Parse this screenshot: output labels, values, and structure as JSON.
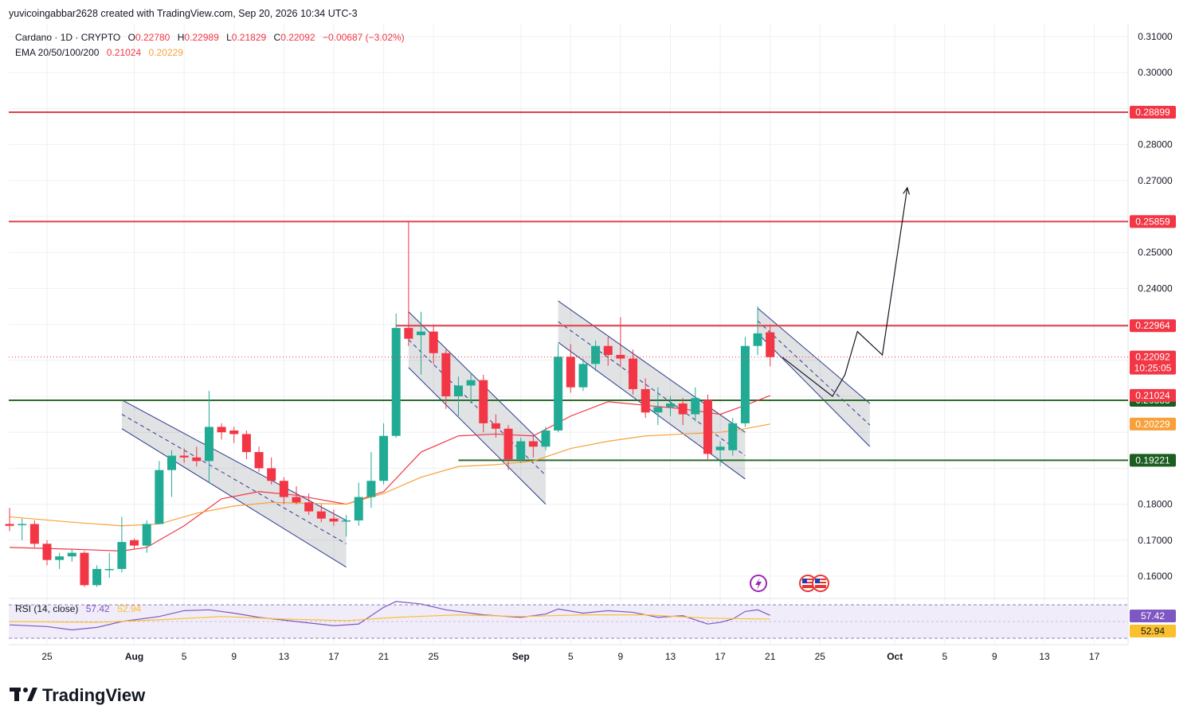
{
  "header": {
    "author_line": "yuvicoingabbar2628 created with TradingView.com, Sep 20, 2026 10:34 UTC-3"
  },
  "legend": {
    "symbol": "Cardano · 1D · CRYPTO",
    "o_label": "O",
    "o_value": "0.22780",
    "h_label": "H",
    "h_value": "0.22989",
    "l_label": "L",
    "l_value": "0.21829",
    "c_label": "C",
    "c_value": "0.22092",
    "change": "−0.00687 (−3.02%)",
    "ema_label": "EMA 20/50/100/200",
    "ema_value_1": "0.21024",
    "ema_value_2": "0.20229"
  },
  "rsi_legend": {
    "label": "RSI (14, close)",
    "value_1": "57.42",
    "value_2": "52.94"
  },
  "footer": {
    "logo_text": "TradingView"
  },
  "colors": {
    "up": "#22ab94",
    "down": "#f23645",
    "resistance": "#e0404a",
    "support": "#2e6b2e",
    "ema_fast": "#f23645",
    "ema_slow": "#f7a13a",
    "channel": "#2a3a8c",
    "rsi_line": "#7e57c2",
    "rsi_ma": "#fbc02d"
  },
  "chart_data": {
    "type": "candlestick",
    "symbol": "Cardano",
    "timeframe": "1D",
    "y_axis": {
      "range": [
        0.156,
        0.316
      ],
      "ticks": [
        "0.31000",
        "0.30000",
        "0.28000",
        "0.27000",
        "0.25000",
        "0.24000",
        "0.18000",
        "0.17000",
        "0.16000"
      ]
    },
    "x_axis": {
      "ticks": [
        {
          "day": 0,
          "label": "25",
          "bold": false
        },
        {
          "day": 7,
          "label": "Aug",
          "bold": true
        },
        {
          "day": 11,
          "label": "5",
          "bold": false
        },
        {
          "day": 15,
          "label": "9",
          "bold": false
        },
        {
          "day": 19,
          "label": "13",
          "bold": false
        },
        {
          "day": 23,
          "label": "17",
          "bold": false
        },
        {
          "day": 27,
          "label": "21",
          "bold": false
        },
        {
          "day": 31,
          "label": "25",
          "bold": false
        },
        {
          "day": 38,
          "label": "Sep",
          "bold": true
        },
        {
          "day": 42,
          "label": "5",
          "bold": false
        },
        {
          "day": 46,
          "label": "9",
          "bold": false
        },
        {
          "day": 50,
          "label": "13",
          "bold": false
        },
        {
          "day": 54,
          "label": "17",
          "bold": false
        },
        {
          "day": 58,
          "label": "21",
          "bold": false
        },
        {
          "day": 62,
          "label": "25",
          "bold": false
        },
        {
          "day": 68,
          "label": "Oct",
          "bold": true
        },
        {
          "day": 72,
          "label": "5",
          "bold": false
        },
        {
          "day": 76,
          "label": "9",
          "bold": false
        },
        {
          "day": 80,
          "label": "13",
          "bold": false
        },
        {
          "day": 84,
          "label": "17",
          "bold": false
        }
      ]
    },
    "candles": [
      {
        "day": -3,
        "o": 0.1745,
        "h": 0.179,
        "l": 0.1725,
        "c": 0.174
      },
      {
        "day": -2,
        "o": 0.1742,
        "h": 0.176,
        "l": 0.17,
        "c": 0.1745
      },
      {
        "day": -1,
        "o": 0.1745,
        "h": 0.1755,
        "l": 0.168,
        "c": 0.169
      },
      {
        "day": 0,
        "o": 0.169,
        "h": 0.17,
        "l": 0.163,
        "c": 0.1645
      },
      {
        "day": 1,
        "o": 0.1645,
        "h": 0.1665,
        "l": 0.162,
        "c": 0.1655
      },
      {
        "day": 2,
        "o": 0.1655,
        "h": 0.1675,
        "l": 0.164,
        "c": 0.1665
      },
      {
        "day": 3,
        "o": 0.1665,
        "h": 0.167,
        "l": 0.157,
        "c": 0.1575
      },
      {
        "day": 4,
        "o": 0.1575,
        "h": 0.163,
        "l": 0.157,
        "c": 0.162
      },
      {
        "day": 5,
        "o": 0.162,
        "h": 0.1665,
        "l": 0.1595,
        "c": 0.162
      },
      {
        "day": 6,
        "o": 0.162,
        "h": 0.1765,
        "l": 0.161,
        "c": 0.1695
      },
      {
        "day": 7,
        "o": 0.17,
        "h": 0.1705,
        "l": 0.1675,
        "c": 0.1685
      },
      {
        "day": 8,
        "o": 0.1685,
        "h": 0.1755,
        "l": 0.1665,
        "c": 0.1745
      },
      {
        "day": 9,
        "o": 0.1745,
        "h": 0.192,
        "l": 0.1745,
        "c": 0.1895
      },
      {
        "day": 10,
        "o": 0.1895,
        "h": 0.195,
        "l": 0.182,
        "c": 0.1935
      },
      {
        "day": 11,
        "o": 0.1935,
        "h": 0.1955,
        "l": 0.1915,
        "c": 0.193
      },
      {
        "day": 12,
        "o": 0.193,
        "h": 0.196,
        "l": 0.1905,
        "c": 0.192
      },
      {
        "day": 13,
        "o": 0.192,
        "h": 0.2115,
        "l": 0.186,
        "c": 0.2015
      },
      {
        "day": 14,
        "o": 0.2015,
        "h": 0.2025,
        "l": 0.198,
        "c": 0.2
      },
      {
        "day": 15,
        "o": 0.2005,
        "h": 0.2015,
        "l": 0.197,
        "c": 0.1995
      },
      {
        "day": 16,
        "o": 0.1995,
        "h": 0.2005,
        "l": 0.1925,
        "c": 0.1945
      },
      {
        "day": 17,
        "o": 0.1945,
        "h": 0.196,
        "l": 0.189,
        "c": 0.19
      },
      {
        "day": 18,
        "o": 0.19,
        "h": 0.193,
        "l": 0.1855,
        "c": 0.1865
      },
      {
        "day": 19,
        "o": 0.1865,
        "h": 0.1875,
        "l": 0.18,
        "c": 0.182
      },
      {
        "day": 20,
        "o": 0.182,
        "h": 0.185,
        "l": 0.18,
        "c": 0.1805
      },
      {
        "day": 21,
        "o": 0.1805,
        "h": 0.183,
        "l": 0.177,
        "c": 0.178
      },
      {
        "day": 22,
        "o": 0.178,
        "h": 0.18,
        "l": 0.175,
        "c": 0.176
      },
      {
        "day": 23,
        "o": 0.176,
        "h": 0.1785,
        "l": 0.174,
        "c": 0.1752
      },
      {
        "day": 24,
        "o": 0.1752,
        "h": 0.177,
        "l": 0.171,
        "c": 0.1755
      },
      {
        "day": 25,
        "o": 0.1755,
        "h": 0.186,
        "l": 0.174,
        "c": 0.182
      },
      {
        "day": 26,
        "o": 0.182,
        "h": 0.1945,
        "l": 0.179,
        "c": 0.1865
      },
      {
        "day": 27,
        "o": 0.1865,
        "h": 0.2025,
        "l": 0.1855,
        "c": 0.199
      },
      {
        "day": 28,
        "o": 0.199,
        "h": 0.233,
        "l": 0.1985,
        "c": 0.229
      },
      {
        "day": 29,
        "o": 0.229,
        "h": 0.2585,
        "l": 0.224,
        "c": 0.226
      },
      {
        "day": 30,
        "o": 0.227,
        "h": 0.2335,
        "l": 0.216,
        "c": 0.228
      },
      {
        "day": 31,
        "o": 0.228,
        "h": 0.23,
        "l": 0.219,
        "c": 0.222
      },
      {
        "day": 32,
        "o": 0.222,
        "h": 0.223,
        "l": 0.2065,
        "c": 0.21
      },
      {
        "day": 33,
        "o": 0.21,
        "h": 0.2155,
        "l": 0.2045,
        "c": 0.213
      },
      {
        "day": 34,
        "o": 0.213,
        "h": 0.2165,
        "l": 0.208,
        "c": 0.2145
      },
      {
        "day": 35,
        "o": 0.2145,
        "h": 0.216,
        "l": 0.2,
        "c": 0.2025
      },
      {
        "day": 36,
        "o": 0.2025,
        "h": 0.205,
        "l": 0.1985,
        "c": 0.201
      },
      {
        "day": 37,
        "o": 0.201,
        "h": 0.202,
        "l": 0.1895,
        "c": 0.1925
      },
      {
        "day": 38,
        "o": 0.1925,
        "h": 0.1985,
        "l": 0.1915,
        "c": 0.1975
      },
      {
        "day": 39,
        "o": 0.1975,
        "h": 0.199,
        "l": 0.193,
        "c": 0.196
      },
      {
        "day": 40,
        "o": 0.196,
        "h": 0.2015,
        "l": 0.195,
        "c": 0.2005
      },
      {
        "day": 41,
        "o": 0.2005,
        "h": 0.2245,
        "l": 0.2,
        "c": 0.221
      },
      {
        "day": 42,
        "o": 0.221,
        "h": 0.2245,
        "l": 0.211,
        "c": 0.2125
      },
      {
        "day": 43,
        "o": 0.2125,
        "h": 0.2205,
        "l": 0.2115,
        "c": 0.219
      },
      {
        "day": 44,
        "o": 0.219,
        "h": 0.2255,
        "l": 0.217,
        "c": 0.224
      },
      {
        "day": 45,
        "o": 0.224,
        "h": 0.2265,
        "l": 0.2185,
        "c": 0.2215
      },
      {
        "day": 46,
        "o": 0.2215,
        "h": 0.232,
        "l": 0.218,
        "c": 0.2205
      },
      {
        "day": 47,
        "o": 0.2205,
        "h": 0.223,
        "l": 0.2105,
        "c": 0.212
      },
      {
        "day": 48,
        "o": 0.212,
        "h": 0.215,
        "l": 0.204,
        "c": 0.2055
      },
      {
        "day": 49,
        "o": 0.2055,
        "h": 0.2125,
        "l": 0.202,
        "c": 0.207
      },
      {
        "day": 50,
        "o": 0.207,
        "h": 0.21,
        "l": 0.2045,
        "c": 0.208
      },
      {
        "day": 51,
        "o": 0.208,
        "h": 0.2095,
        "l": 0.202,
        "c": 0.205
      },
      {
        "day": 52,
        "o": 0.205,
        "h": 0.2125,
        "l": 0.203,
        "c": 0.2095
      },
      {
        "day": 53,
        "o": 0.209,
        "h": 0.2105,
        "l": 0.1925,
        "c": 0.194
      },
      {
        "day": 54,
        "o": 0.195,
        "h": 0.1975,
        "l": 0.1905,
        "c": 0.196
      },
      {
        "day": 55,
        "o": 0.195,
        "h": 0.204,
        "l": 0.1935,
        "c": 0.2025
      },
      {
        "day": 56,
        "o": 0.2025,
        "h": 0.2265,
        "l": 0.2015,
        "c": 0.224
      },
      {
        "day": 57,
        "o": 0.224,
        "h": 0.235,
        "l": 0.2215,
        "c": 0.2275
      },
      {
        "day": 58,
        "o": 0.2278,
        "h": 0.2299,
        "l": 0.2183,
        "c": 0.2209
      }
    ],
    "ema": [
      {
        "name": "EMA 20",
        "value": 0.21024,
        "points": [
          [
            -3,
            0.168
          ],
          [
            2,
            0.1675
          ],
          [
            6,
            0.167
          ],
          [
            8,
            0.168
          ],
          [
            11,
            0.174
          ],
          [
            14,
            0.1815
          ],
          [
            17,
            0.1835
          ],
          [
            20,
            0.1825
          ],
          [
            24,
            0.18
          ],
          [
            27,
            0.1835
          ],
          [
            30,
            0.1945
          ],
          [
            33,
            0.199
          ],
          [
            36,
            0.1995
          ],
          [
            39,
            0.199
          ],
          [
            42,
            0.2045
          ],
          [
            45,
            0.2085
          ],
          [
            48,
            0.2075
          ],
          [
            51,
            0.2065
          ],
          [
            54,
            0.205
          ],
          [
            56,
            0.2075
          ],
          [
            58,
            0.2102
          ]
        ]
      },
      {
        "name": "EMA 50",
        "value": 0.20229,
        "points": [
          [
            -3,
            0.1765
          ],
          [
            2,
            0.175
          ],
          [
            6,
            0.174
          ],
          [
            9,
            0.1745
          ],
          [
            12,
            0.1775
          ],
          [
            15,
            0.1795
          ],
          [
            18,
            0.1805
          ],
          [
            24,
            0.18
          ],
          [
            27,
            0.183
          ],
          [
            30,
            0.1875
          ],
          [
            33,
            0.1905
          ],
          [
            36,
            0.191
          ],
          [
            39,
            0.192
          ],
          [
            42,
            0.1955
          ],
          [
            45,
            0.1975
          ],
          [
            48,
            0.199
          ],
          [
            51,
            0.1995
          ],
          [
            54,
            0.2
          ],
          [
            56,
            0.201
          ],
          [
            58,
            0.2023
          ]
        ]
      }
    ],
    "levels": [
      {
        "value": 0.28899,
        "label": "0.28899",
        "kind": "resistance"
      },
      {
        "value": 0.25859,
        "label": "0.25859",
        "kind": "resistance"
      },
      {
        "value": 0.22964,
        "label": "0.22964",
        "kind": "resistance"
      },
      {
        "value": 0.20888,
        "label": "0.20888",
        "kind": "support"
      },
      {
        "value": 0.19221,
        "label": "0.19221",
        "kind": "support"
      }
    ],
    "price_badges": [
      {
        "value": 0.22092,
        "label": "0.22092",
        "sub": "10:25:05",
        "color": "#f23645"
      },
      {
        "value": 0.21024,
        "label": "0.21024",
        "color": "#f23645"
      },
      {
        "value": 0.20229,
        "label": "0.20229",
        "color": "#f7a13a"
      }
    ],
    "channels": [
      {
        "start_day": 6,
        "start_top": 0.209,
        "start_bottom": 0.201,
        "end_day": 24,
        "end_top": 0.1755,
        "end_bottom": 0.1625
      },
      {
        "start_day": 29,
        "start_top": 0.2335,
        "start_bottom": 0.218,
        "end_day": 40,
        "end_top": 0.196,
        "end_bottom": 0.18
      },
      {
        "start_day": 41,
        "start_top": 0.2365,
        "start_bottom": 0.225,
        "end_day": 56,
        "end_top": 0.2,
        "end_bottom": 0.187
      },
      {
        "start_day": 57,
        "start_top": 0.2345,
        "start_bottom": 0.2275,
        "end_day": 66,
        "end_top": 0.208,
        "end_bottom": 0.196
      }
    ],
    "projection": [
      [
        59,
        0.2208
      ],
      [
        63,
        0.21
      ],
      [
        64,
        0.216
      ],
      [
        65,
        0.228
      ],
      [
        67,
        0.2215
      ],
      [
        69,
        0.268
      ]
    ],
    "rsi": {
      "name": "RSI (14, close)",
      "value": 57.42,
      "ma_value": 52.94,
      "range": [
        30,
        70
      ],
      "points": [
        [
          -3,
          46
        ],
        [
          0,
          44
        ],
        [
          2,
          40
        ],
        [
          4,
          43
        ],
        [
          6,
          50
        ],
        [
          9,
          56
        ],
        [
          11,
          63
        ],
        [
          13,
          64
        ],
        [
          15,
          60
        ],
        [
          17,
          55
        ],
        [
          20,
          50
        ],
        [
          23,
          45
        ],
        [
          25,
          47
        ],
        [
          27,
          67
        ],
        [
          28,
          74
        ],
        [
          30,
          71
        ],
        [
          32,
          64
        ],
        [
          35,
          58
        ],
        [
          38,
          55
        ],
        [
          40,
          59
        ],
        [
          41,
          65
        ],
        [
          43,
          60
        ],
        [
          45,
          63
        ],
        [
          47,
          61
        ],
        [
          49,
          55
        ],
        [
          51,
          57
        ],
        [
          53,
          47
        ],
        [
          54,
          49
        ],
        [
          55,
          53
        ],
        [
          56,
          62
        ],
        [
          57,
          64
        ],
        [
          58,
          57.42
        ]
      ],
      "ma_points": [
        [
          -3,
          50
        ],
        [
          4,
          49
        ],
        [
          9,
          52
        ],
        [
          14,
          56
        ],
        [
          19,
          53
        ],
        [
          24,
          51
        ],
        [
          28,
          55
        ],
        [
          33,
          58
        ],
        [
          38,
          56
        ],
        [
          43,
          58
        ],
        [
          48,
          58
        ],
        [
          53,
          54
        ],
        [
          58,
          52.94
        ]
      ]
    }
  }
}
